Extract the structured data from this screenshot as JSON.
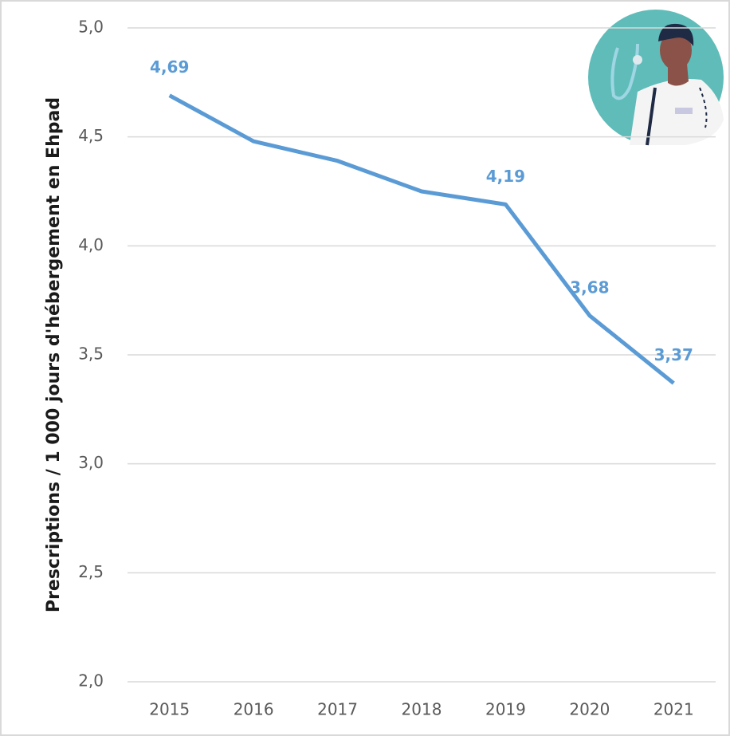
{
  "chart_data": {
    "type": "line",
    "y_label": "Prescriptions / 1 000 jours d'hébergement en Ehpad",
    "categories": [
      "2015",
      "2016",
      "2017",
      "2018",
      "2019",
      "2020",
      "2021"
    ],
    "values": [
      4.69,
      4.48,
      4.39,
      4.25,
      4.19,
      3.68,
      3.37
    ],
    "value_labels": [
      "4,69",
      null,
      null,
      null,
      "4,19",
      "3,68",
      "3,37"
    ],
    "color": "#5b9bd5",
    "ylim": [
      2,
      5
    ],
    "yticks": [
      {
        "value": 2,
        "label": "2,0"
      },
      {
        "value": 2.5,
        "label": "2,5"
      },
      {
        "value": 3,
        "label": "3,0"
      },
      {
        "value": 3.5,
        "label": "3,5"
      },
      {
        "value": 4,
        "label": "4,0"
      },
      {
        "value": 4.5,
        "label": "4,5"
      },
      {
        "value": 5,
        "label": "5,0"
      }
    ],
    "grid": true
  }
}
